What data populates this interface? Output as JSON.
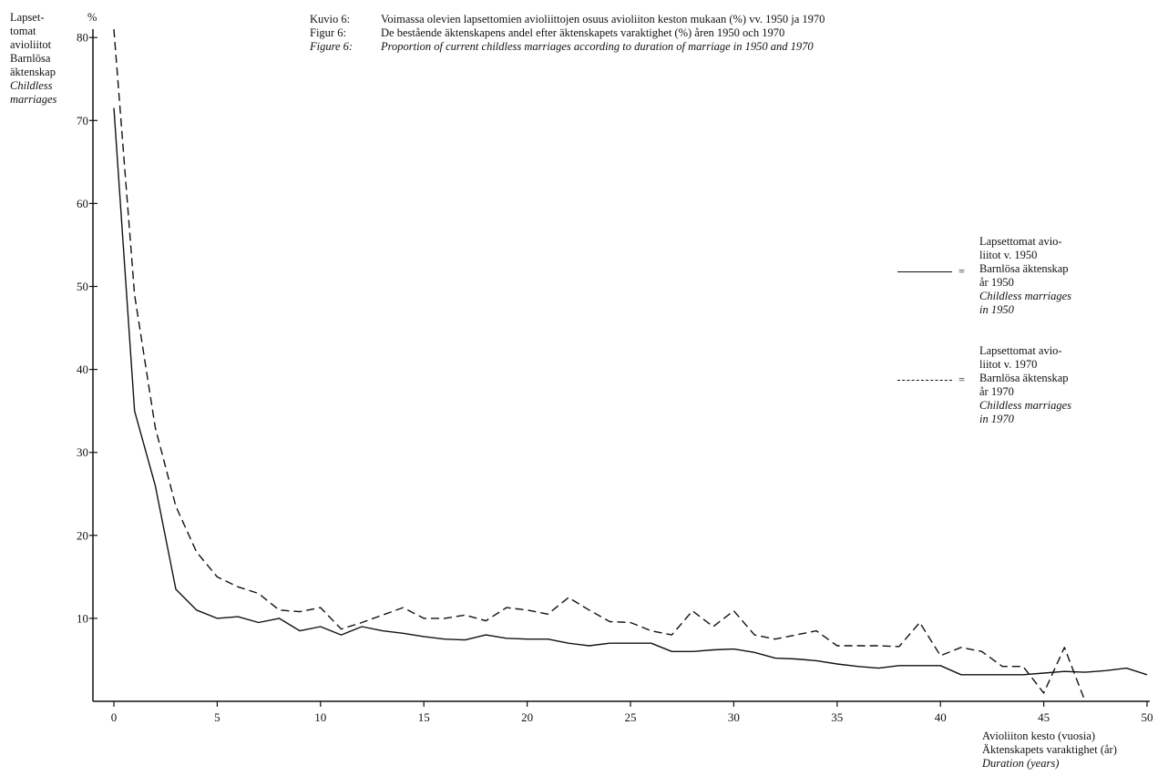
{
  "header": {
    "captions": [
      {
        "label": "Kuvio 6:",
        "text": "Voimassa olevien lapsettomien avioliittojen osuus avioliiton keston mukaan (%) vv. 1950 ja 1970",
        "italic": false
      },
      {
        "label": "Figur 6:",
        "text": "De bestående äktenskapens andel efter äktenskapets varaktighet (%) åren 1950 och 1970",
        "italic": false
      },
      {
        "label": "Figure 6:",
        "text": "Proportion of current childless marriages according to duration of marriage in 1950 and 1970",
        "italic": true
      }
    ]
  },
  "y_axis_title": {
    "lines": [
      "Lapset-",
      "tomat",
      "avioliitot",
      "Barnlösa",
      "äktenskap"
    ],
    "italic_lines": [
      "Childless",
      "marriages"
    ],
    "unit": "%"
  },
  "x_axis_title": {
    "line1": "Avioliiton kesto (vuosia)",
    "line2": "Äktenskapets varaktighet (år)",
    "line3": "Duration (years)"
  },
  "legend": [
    {
      "lines": [
        "Lapsettomat avio-",
        "liitot v. 1950"
      ],
      "eq": "=",
      "lines2": [
        "Barnlösa äktenskap",
        "år 1950"
      ],
      "italic_lines": [
        "Childless marriages",
        "in 1950"
      ],
      "style": "solid"
    },
    {
      "lines": [
        "Lapsettomat avio-",
        "liitot v. 1970"
      ],
      "eq": "=",
      "lines2": [
        "Barnlösa äktenskap",
        "år 1970"
      ],
      "italic_lines": [
        "Childless marriages",
        "in 1970"
      ],
      "style": "dashed"
    }
  ],
  "chart_data": {
    "type": "line",
    "x_ticks": [
      0,
      5,
      10,
      15,
      20,
      25,
      30,
      35,
      40,
      45,
      50
    ],
    "y_ticks": [
      10,
      20,
      30,
      40,
      50,
      60,
      70,
      80
    ],
    "xlim": [
      -1,
      50
    ],
    "ylim": [
      0,
      81
    ],
    "grid": false,
    "legend_position": "right",
    "series": [
      {
        "key": "1950",
        "style": "solid",
        "x": [
          0,
          1,
          2,
          3,
          4,
          5,
          6,
          7,
          8,
          9,
          10,
          11,
          12,
          13,
          14,
          15,
          16,
          17,
          18,
          19,
          20,
          21,
          22,
          23,
          24,
          25,
          26,
          27,
          28,
          29,
          30,
          31,
          32,
          33,
          34,
          35,
          36,
          37,
          38,
          39,
          40,
          41,
          42,
          43,
          44,
          45,
          46,
          47,
          48,
          49,
          50
        ],
        "y": [
          71.5,
          35,
          26,
          13.5,
          11,
          10,
          10.2,
          9.5,
          10,
          8.5,
          9,
          8,
          9,
          8.5,
          8.2,
          7.8,
          7.5,
          7.4,
          8,
          7.6,
          7.5,
          7.5,
          7,
          6.7,
          7,
          7,
          7,
          6,
          6,
          6.2,
          6.3,
          5.9,
          5.2,
          5.1,
          4.9,
          4.5,
          4.2,
          4,
          4.3,
          4.3,
          4.3,
          3.2,
          3.2,
          3.2,
          3.2,
          3.4,
          3.6,
          3.5,
          3.7,
          4,
          3.2
        ]
      },
      {
        "key": "1970",
        "style": "dashed",
        "x": [
          0,
          1,
          2,
          3,
          4,
          5,
          6,
          7,
          8,
          9,
          10,
          11,
          12,
          13,
          14,
          15,
          16,
          17,
          18,
          19,
          20,
          21,
          22,
          23,
          24,
          25,
          26,
          27,
          28,
          29,
          30,
          31,
          32,
          33,
          34,
          35,
          36,
          37,
          38,
          39,
          40,
          41,
          42,
          43,
          44,
          45,
          46,
          47
        ],
        "y": [
          81,
          49,
          33,
          23.5,
          18,
          15,
          13.8,
          13,
          11,
          10.8,
          11.3,
          8.7,
          9.5,
          10.4,
          11.3,
          10,
          10,
          10.4,
          9.7,
          11.3,
          11,
          10.5,
          12.5,
          11,
          9.6,
          9.5,
          8.5,
          8,
          10.9,
          9,
          10.9,
          8,
          7.5,
          8,
          8.5,
          6.7,
          6.7,
          6.7,
          6.6,
          9.5,
          5.5,
          6.5,
          6,
          4.2,
          4.2,
          1,
          6.5,
          0
        ]
      }
    ]
  }
}
